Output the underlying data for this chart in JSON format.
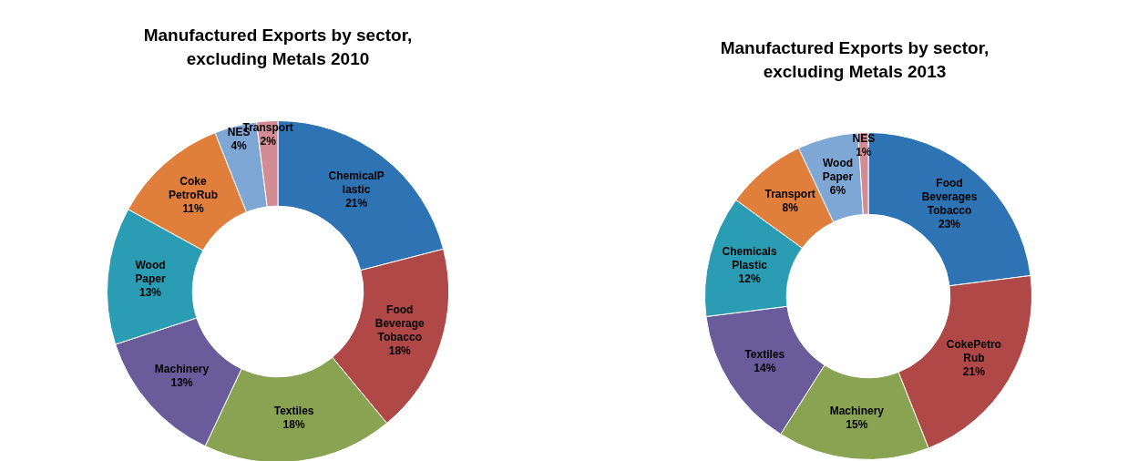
{
  "chart_data": [
    {
      "type": "donut",
      "title": "Manufactured Exports by sector, excluding Metals 2010",
      "categories": [
        "ChemicalP lastic",
        "Food Beverage Tobacco",
        "Textiles",
        "Machinery",
        "Wood Paper",
        "Coke PetroRub",
        "NES",
        "Transport"
      ],
      "values": [
        21,
        18,
        18,
        13,
        13,
        11,
        4,
        2
      ],
      "value_labels": [
        "21%",
        "18%",
        "18%",
        "13%",
        "13%",
        "11%",
        "4%",
        "2%"
      ],
      "colors": [
        "#2e74b5",
        "#b04848",
        "#8aa352",
        "#6a5b9a",
        "#2a9cb3",
        "#e07e3c",
        "#7fa7d6",
        "#d48c94"
      ]
    },
    {
      "type": "donut",
      "title": "Manufactured Exports by sector, excluding Metals 2013",
      "categories": [
        "Food Beverages Tobacco",
        "CokePetro Rub",
        "Machinery",
        "Textiles",
        "Chemicals Plastic",
        "Transport",
        "Wood Paper",
        "NES"
      ],
      "values": [
        23,
        21,
        15,
        14,
        12,
        8,
        6,
        1
      ],
      "value_labels": [
        "23%",
        "21%",
        "15%",
        "14%",
        "12%",
        "8%",
        "6%",
        "1%"
      ],
      "colors": [
        "#2e74b5",
        "#b04848",
        "#8aa352",
        "#6a5b9a",
        "#2a9cb3",
        "#e07e3c",
        "#7fa7d6",
        "#d48c94"
      ]
    }
  ]
}
